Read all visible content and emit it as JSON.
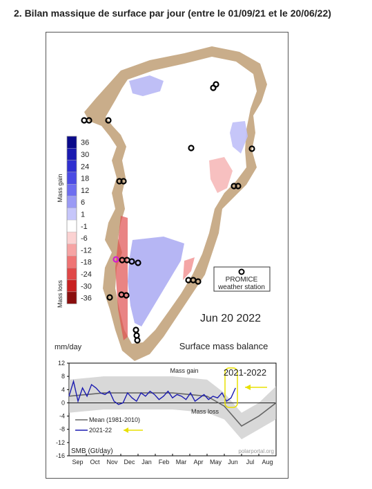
{
  "page": {
    "heading": "2. Bilan massique de surface par jour (entre le 01/09/21 et le 20/06/22)"
  },
  "map": {
    "date_label": "Jun 20 2022",
    "caption": "Surface mass balance",
    "legend_box": {
      "line1": "PROMICE",
      "line2": "weather station"
    },
    "colorbar": {
      "gain_label": "Mass gain",
      "loss_label": "Mass loss",
      "unit": "mm/day",
      "ticks": [
        "36",
        "30",
        "24",
        "18",
        "12",
        "6",
        "1",
        "-1",
        "-6",
        "-12",
        "-18",
        "-24",
        "-30",
        "-36"
      ],
      "colors": [
        "#0a0a8a",
        "#1a1ab0",
        "#2f2fd0",
        "#4b4be4",
        "#6e6ef0",
        "#9a9af5",
        "#c6c6fa",
        "#ffffff",
        "#fbd2d2",
        "#f6a4a4",
        "#ef7474",
        "#e04848",
        "#c82020",
        "#8a0e0e"
      ]
    },
    "colors": {
      "land": "#c9ad8a",
      "ice": "#ffffff",
      "gain": "#a9a9f2",
      "loss": "#f08080",
      "station": "#000000",
      "station_highlight": "#d01fd0",
      "ocean": "#ffffff"
    }
  },
  "chart_data": {
    "type": "line",
    "title": "2021-2022",
    "ylabel": "SMB (Gt/day)",
    "ylim": [
      -16,
      12
    ],
    "y_ticks": [
      12,
      8,
      4,
      0,
      -4,
      -8,
      -12,
      -16
    ],
    "x_ticks": [
      "Sep",
      "Oct",
      "Nov",
      "Dec",
      "Jan",
      "Feb",
      "Mar",
      "Apr",
      "May",
      "Jun",
      "Jul",
      "Aug"
    ],
    "annotations": {
      "gain": "Mass gain",
      "loss": "Mass loss",
      "source": "polarportal.org"
    },
    "grid": false,
    "legend_placement": "bottom-left",
    "series": [
      {
        "name": "Mean (1981-2010)",
        "color": "#666666",
        "monthly_values": [
          2.0,
          2.5,
          3.0,
          3.0,
          3.0,
          3.0,
          3.0,
          2.5,
          2.0,
          -1.0,
          -7.0,
          -4.0,
          0.0
        ]
      },
      {
        "name": "2021-22",
        "color": "#1a1ab0",
        "monthly_values": [
          2.0,
          6.5,
          0.5,
          4.5,
          2.0,
          5.5,
          4.5,
          3.0,
          2.5,
          3.5,
          0.5,
          -0.5,
          0.0,
          3.0,
          1.5,
          0.5,
          3.0,
          2.0,
          3.5,
          2.5,
          1.0,
          2.0,
          3.5,
          1.5,
          2.5,
          2.0,
          1.0,
          3.0,
          0.5,
          1.5,
          2.5,
          1.0,
          2.0,
          1.5,
          3.0,
          0.5,
          1.5,
          4.5
        ]
      }
    ],
    "variability_color": "#c8c8c8"
  }
}
